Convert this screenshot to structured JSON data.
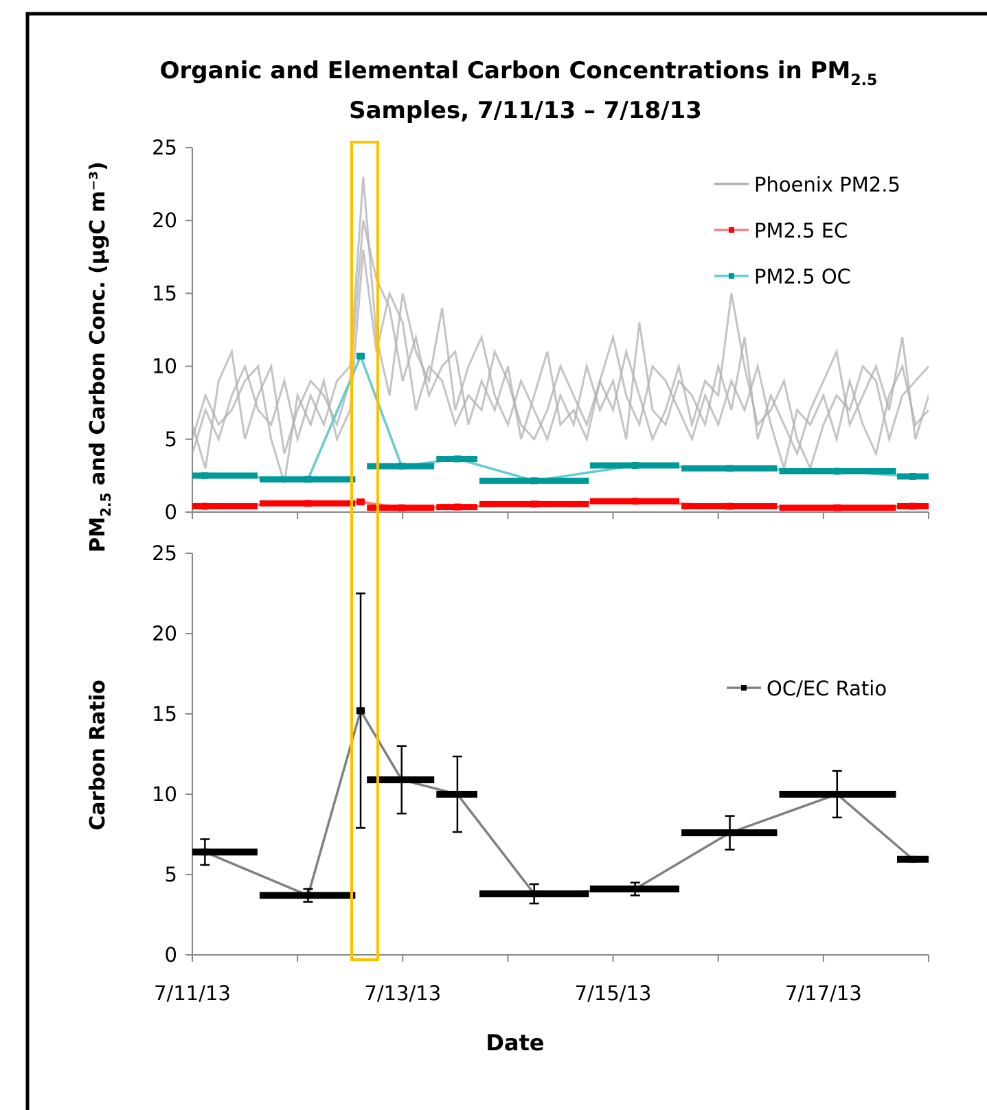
{
  "chart_data": [
    {
      "type": "line",
      "title": {
        "text": "Organic and Elemental Carbon Concentrations in PM",
        "subscript": "2.5",
        "line2": "Samples, 7/11/13 – 7/18/13"
      },
      "ylabel": {
        "prefix": "PM",
        "subscript": "2.5",
        "text": " and Carbon Conc. (µgC  m⁻³)"
      },
      "xlim": [
        0,
        7
      ],
      "xticks": [
        {
          "value": 0,
          "label": null
        },
        {
          "value": 1,
          "label": null
        },
        {
          "value": 2,
          "label": null
        },
        {
          "value": 3,
          "label": null
        },
        {
          "value": 4,
          "label": null
        },
        {
          "value": 5,
          "label": null
        },
        {
          "value": 6,
          "label": null
        },
        {
          "value": 7,
          "label": null
        }
      ],
      "ylim": [
        0,
        25
      ],
      "yticks": [
        0,
        5,
        10,
        15,
        20,
        25
      ],
      "legend": "upper right",
      "series": [
        {
          "name": "Phoenix PM2.5",
          "color": "#b0b0b0",
          "x": [
            0,
            0.125,
            0.25,
            0.375,
            0.5,
            0.625,
            0.75,
            0.875,
            1,
            1.125,
            1.25,
            1.375,
            1.5,
            1.625,
            1.75,
            1.875,
            2,
            2.125,
            2.25,
            2.375,
            2.5,
            2.625,
            2.75,
            2.875,
            3,
            3.125,
            3.25,
            3.375,
            3.5,
            3.625,
            3.75,
            3.875,
            4,
            4.125,
            4.25,
            4.375,
            4.5,
            4.625,
            4.75,
            4.875,
            5,
            5.125,
            5.25,
            5.375,
            5.5,
            5.625,
            5.75,
            5.875,
            6,
            6.125,
            6.25,
            6.375,
            6.5,
            6.625,
            6.75,
            6.875,
            7
          ],
          "lines": [
            [
              4,
              7,
              5,
              8,
              10,
              7,
              6,
              9,
              5,
              8,
              6,
              9,
              10,
              23,
              12,
              8,
              15,
              11,
              9,
              14,
              7,
              10,
              12,
              8,
              6,
              9,
              7,
              5,
              8,
              6,
              10,
              7,
              9,
              5,
              13,
              7,
              6,
              9,
              8,
              6,
              10,
              7,
              12,
              5,
              8,
              6,
              4,
              7,
              9,
              11,
              6,
              8,
              10,
              7,
              12,
              5,
              8
            ],
            [
              6,
              3,
              9,
              11,
              5,
              8,
              10,
              4,
              7,
              9,
              8,
              6,
              9,
              20,
              16,
              14,
              9,
              12,
              8,
              10,
              11,
              6,
              9,
              7,
              10,
              5,
              8,
              11,
              6,
              7,
              5,
              9,
              12,
              8,
              6,
              10,
              9,
              7,
              5,
              8,
              6,
              9,
              7,
              10,
              6,
              3,
              7,
              6,
              8,
              5,
              9,
              6,
              4,
              8,
              10,
              6,
              7
            ],
            [
              5,
              8,
              6,
              7,
              9,
              10,
              5,
              2,
              8,
              6,
              9,
              5,
              7,
              18,
              11,
              15,
              13,
              7,
              10,
              9,
              6,
              8,
              7,
              11,
              9,
              6,
              5,
              7,
              10,
              8,
              6,
              9,
              7,
              11,
              8,
              5,
              7,
              10,
              6,
              9,
              8,
              15,
              10,
              6,
              7,
              9,
              5,
              3,
              6,
              8,
              7,
              10,
              9,
              5,
              8,
              9,
              10
            ]
          ]
        },
        {
          "name": "PM2.5 EC",
          "color": "#ff0000",
          "line_color": "#f08080",
          "x": [
            0.12,
            1.1,
            1.6,
            1.99,
            2.52,
            3.25,
            4.21,
            5.11,
            6.13,
            6.85
          ],
          "x_start": [
            0,
            0.64,
            1.56,
            1.66,
            2.32,
            2.73,
            3.78,
            4.65,
            5.58,
            6.7
          ],
          "x_end": [
            0.62,
            1.55,
            1.64,
            2.3,
            2.71,
            3.77,
            4.63,
            5.56,
            6.69,
            7
          ],
          "values": [
            0.4,
            0.6,
            0.7,
            0.3,
            0.35,
            0.55,
            0.75,
            0.4,
            0.3,
            0.4
          ]
        },
        {
          "name": "PM2.5 OC",
          "color": "#009999",
          "line_color": "#66cccc",
          "x": [
            0.12,
            1.1,
            1.6,
            1.99,
            2.52,
            3.25,
            4.21,
            5.11,
            6.13,
            6.85
          ],
          "x_start": [
            0,
            0.64,
            1.56,
            1.66,
            2.32,
            2.73,
            3.78,
            4.65,
            5.58,
            6.7
          ],
          "x_end": [
            0.62,
            1.55,
            1.64,
            2.3,
            2.71,
            3.77,
            4.63,
            5.56,
            6.69,
            7
          ],
          "values": [
            2.5,
            2.25,
            10.7,
            3.15,
            3.65,
            2.15,
            3.2,
            3.0,
            2.8,
            2.45
          ]
        }
      ]
    },
    {
      "type": "line",
      "ylabel": "Carbon Ratio",
      "xlabel": "Date",
      "xlim": [
        0,
        7
      ],
      "xticks": [
        {
          "value": 0,
          "label": "7/11/13"
        },
        {
          "value": 1,
          "label": null
        },
        {
          "value": 2,
          "label": "7/13/13"
        },
        {
          "value": 3,
          "label": null
        },
        {
          "value": 4,
          "label": "7/15/13"
        },
        {
          "value": 5,
          "label": null
        },
        {
          "value": 6,
          "label": "7/17/13"
        },
        {
          "value": 7,
          "label": null
        }
      ],
      "ylim": [
        0,
        25
      ],
      "yticks": [
        0,
        5,
        10,
        15,
        20,
        25
      ],
      "legend": "center right",
      "series": [
        {
          "name": "OC/EC Ratio",
          "color": "#000000",
          "line_color": "#808080",
          "x": [
            0.12,
            1.1,
            1.6,
            1.99,
            2.52,
            3.25,
            4.21,
            5.11,
            6.13,
            6.85
          ],
          "x_start": [
            0,
            0.64,
            1.56,
            1.66,
            2.32,
            2.73,
            3.78,
            4.65,
            5.58,
            6.7
          ],
          "x_end": [
            0.62,
            1.55,
            1.64,
            2.3,
            2.71,
            3.77,
            4.63,
            5.56,
            6.69,
            7
          ],
          "values": [
            6.4,
            3.7,
            15.2,
            10.9,
            10.0,
            3.8,
            4.1,
            7.6,
            10.0,
            5.95
          ],
          "errors": [
            0.8,
            0.4,
            7.3,
            2.1,
            2.35,
            0.6,
            0.4,
            1.05,
            1.45,
            null
          ]
        }
      ]
    }
  ]
}
